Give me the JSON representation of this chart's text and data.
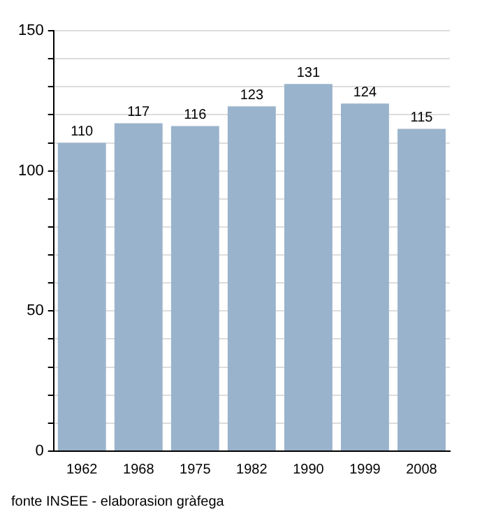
{
  "chart_data": {
    "type": "bar",
    "categories": [
      "1962",
      "1968",
      "1975",
      "1982",
      "1990",
      "1999",
      "2008"
    ],
    "values": [
      110,
      117,
      116,
      123,
      131,
      124,
      115
    ],
    "color": "#9ab3cc",
    "ylim": [
      0,
      150
    ],
    "yticks": [
      0,
      {
        "value": 10,
        "label": null
      },
      {
        "value": 20,
        "label": null
      },
      {
        "value": 30,
        "label": null
      },
      {
        "value": 40,
        "label": null
      },
      50,
      {
        "value": 60,
        "label": null
      },
      {
        "value": 70,
        "label": null
      },
      {
        "value": 80,
        "label": null
      },
      {
        "value": 90,
        "label": null
      },
      100,
      {
        "value": 110,
        "label": null
      },
      {
        "value": 120,
        "label": null
      },
      {
        "value": 130,
        "label": null
      },
      {
        "value": 140,
        "label": null
      },
      150
    ],
    "grid": "y",
    "data_labels": true,
    "annotations": [
      "fonte INSEE - elaborasion gràfega"
    ]
  }
}
